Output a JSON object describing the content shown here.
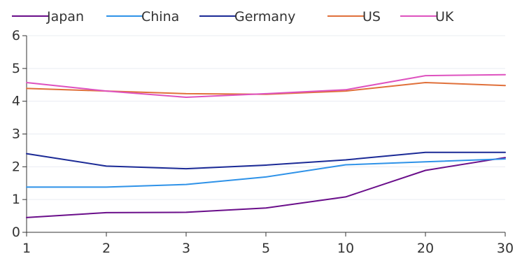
{
  "chart_data": {
    "type": "line",
    "title": "",
    "xlabel": "",
    "ylabel": "",
    "categories": [
      "1",
      "2",
      "3",
      "5",
      "10",
      "20",
      "30"
    ],
    "ylim": [
      0,
      6
    ],
    "yticks": [
      "0",
      "1",
      "2",
      "3",
      "4",
      "5",
      "6"
    ],
    "grid": true,
    "legend_position": "top-left",
    "series": [
      {
        "name": "Japan",
        "color": "#6a0e8a",
        "values": [
          0.45,
          0.6,
          0.61,
          0.74,
          1.08,
          1.89,
          2.28
        ]
      },
      {
        "name": "China",
        "color": "#2e92e8",
        "values": [
          1.38,
          1.38,
          1.46,
          1.69,
          2.06,
          2.15,
          2.24
        ]
      },
      {
        "name": "Germany",
        "color": "#1b2a96",
        "values": [
          2.4,
          2.02,
          1.94,
          2.05,
          2.21,
          2.44,
          2.44
        ]
      },
      {
        "name": "US",
        "color": "#e0703a",
        "values": [
          4.39,
          4.31,
          4.23,
          4.21,
          4.31,
          4.57,
          4.48
        ]
      },
      {
        "name": "UK",
        "color": "#de52bf",
        "values": [
          4.57,
          4.31,
          4.12,
          4.23,
          4.35,
          4.78,
          4.81
        ]
      }
    ]
  }
}
